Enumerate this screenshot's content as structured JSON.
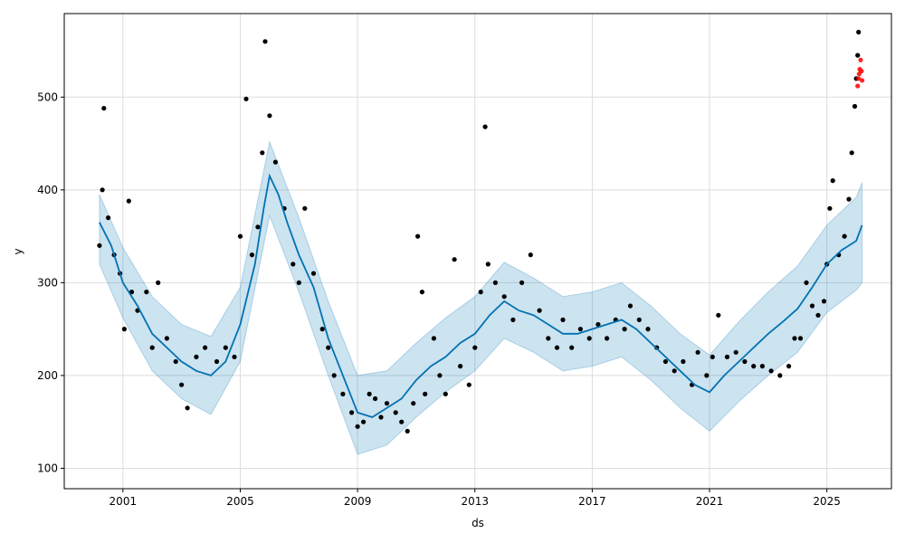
{
  "chart_data": {
    "type": "scatter",
    "xlabel": "ds",
    "ylabel": "y",
    "xlim": [
      1999.0,
      2027.2
    ],
    "ylim": [
      78,
      590
    ],
    "grid": true,
    "legend": "none",
    "x_ticks": [
      2001,
      2005,
      2009,
      2013,
      2017,
      2021,
      2025
    ],
    "x_tick_labels": [
      "2001",
      "2005",
      "2009",
      "2013",
      "2017",
      "2021",
      "2025"
    ],
    "y_ticks": [
      100,
      200,
      300,
      400,
      500
    ],
    "y_tick_labels": [
      "100",
      "200",
      "300",
      "400",
      "500"
    ],
    "colors": {
      "observed": "#000000",
      "forecast_line": "#0072b2",
      "uncertainty_band": "#0072b2",
      "highlight": "#ff0000",
      "grid": "#dddddd"
    },
    "series": [
      {
        "role": "observed",
        "points": [
          [
            2000.2,
            340
          ],
          [
            2000.3,
            400
          ],
          [
            2000.35,
            488
          ],
          [
            2000.5,
            370
          ],
          [
            2000.7,
            330
          ],
          [
            2000.9,
            310
          ],
          [
            2001.05,
            250
          ],
          [
            2001.2,
            388
          ],
          [
            2001.3,
            290
          ],
          [
            2001.5,
            270
          ],
          [
            2001.8,
            290
          ],
          [
            2002.0,
            230
          ],
          [
            2002.2,
            300
          ],
          [
            2002.5,
            240
          ],
          [
            2002.8,
            215
          ],
          [
            2003.0,
            190
          ],
          [
            2003.2,
            165
          ],
          [
            2003.5,
            220
          ],
          [
            2003.8,
            230
          ],
          [
            2004.2,
            215
          ],
          [
            2004.5,
            230
          ],
          [
            2004.8,
            220
          ],
          [
            2005.0,
            350
          ],
          [
            2005.2,
            498
          ],
          [
            2005.4,
            330
          ],
          [
            2005.6,
            360
          ],
          [
            2005.75,
            440
          ],
          [
            2005.85,
            560
          ],
          [
            2006.0,
            480
          ],
          [
            2006.2,
            430
          ],
          [
            2006.5,
            380
          ],
          [
            2006.8,
            320
          ],
          [
            2007.0,
            300
          ],
          [
            2007.2,
            380
          ],
          [
            2007.5,
            310
          ],
          [
            2007.8,
            250
          ],
          [
            2008.0,
            230
          ],
          [
            2008.2,
            200
          ],
          [
            2008.5,
            180
          ],
          [
            2008.8,
            160
          ],
          [
            2009.0,
            145
          ],
          [
            2009.2,
            150
          ],
          [
            2009.4,
            180
          ],
          [
            2009.6,
            175
          ],
          [
            2009.8,
            155
          ],
          [
            2010.0,
            170
          ],
          [
            2010.3,
            160
          ],
          [
            2010.5,
            150
          ],
          [
            2010.7,
            140
          ],
          [
            2010.9,
            170
          ],
          [
            2011.05,
            350
          ],
          [
            2011.2,
            290
          ],
          [
            2011.3,
            180
          ],
          [
            2011.6,
            240
          ],
          [
            2011.8,
            200
          ],
          [
            2012.0,
            180
          ],
          [
            2012.3,
            325
          ],
          [
            2012.5,
            210
          ],
          [
            2012.8,
            190
          ],
          [
            2013.0,
            230
          ],
          [
            2013.2,
            290
          ],
          [
            2013.35,
            468
          ],
          [
            2013.45,
            320
          ],
          [
            2013.7,
            300
          ],
          [
            2014.0,
            285
          ],
          [
            2014.3,
            260
          ],
          [
            2014.6,
            300
          ],
          [
            2014.9,
            330
          ],
          [
            2015.2,
            270
          ],
          [
            2015.5,
            240
          ],
          [
            2015.8,
            230
          ],
          [
            2016.0,
            260
          ],
          [
            2016.3,
            230
          ],
          [
            2016.6,
            250
          ],
          [
            2016.9,
            240
          ],
          [
            2017.2,
            255
          ],
          [
            2017.5,
            240
          ],
          [
            2017.8,
            260
          ],
          [
            2018.1,
            250
          ],
          [
            2018.3,
            275
          ],
          [
            2018.6,
            260
          ],
          [
            2018.9,
            250
          ],
          [
            2019.2,
            230
          ],
          [
            2019.5,
            215
          ],
          [
            2019.8,
            205
          ],
          [
            2020.1,
            215
          ],
          [
            2020.4,
            190
          ],
          [
            2020.6,
            225
          ],
          [
            2020.9,
            200
          ],
          [
            2021.1,
            220
          ],
          [
            2021.3,
            265
          ],
          [
            2021.6,
            220
          ],
          [
            2021.9,
            225
          ],
          [
            2022.2,
            215
          ],
          [
            2022.5,
            210
          ],
          [
            2022.8,
            210
          ],
          [
            2023.1,
            205
          ],
          [
            2023.4,
            200
          ],
          [
            2023.7,
            210
          ],
          [
            2023.9,
            240
          ],
          [
            2024.1,
            240
          ],
          [
            2024.3,
            300
          ],
          [
            2024.5,
            275
          ],
          [
            2024.7,
            265
          ],
          [
            2024.9,
            280
          ],
          [
            2025.0,
            320
          ],
          [
            2025.1,
            380
          ],
          [
            2025.2,
            410
          ],
          [
            2025.4,
            330
          ],
          [
            2025.6,
            350
          ],
          [
            2025.75,
            390
          ],
          [
            2025.85,
            440
          ],
          [
            2025.95,
            490
          ],
          [
            2026.0,
            520
          ],
          [
            2026.05,
            545
          ],
          [
            2026.08,
            570
          ]
        ]
      },
      {
        "role": "highlight",
        "points": [
          [
            2026.05,
            512
          ],
          [
            2026.08,
            520
          ],
          [
            2026.1,
            525
          ],
          [
            2026.12,
            530
          ],
          [
            2026.15,
            540
          ],
          [
            2026.18,
            528
          ],
          [
            2026.2,
            518
          ]
        ]
      },
      {
        "role": "trend",
        "points": [
          [
            2000.2,
            365
          ],
          [
            2000.6,
            340
          ],
          [
            2001.0,
            300
          ],
          [
            2001.5,
            275
          ],
          [
            2002.0,
            245
          ],
          [
            2002.5,
            230
          ],
          [
            2003.0,
            215
          ],
          [
            2003.5,
            205
          ],
          [
            2004.0,
            200
          ],
          [
            2004.5,
            215
          ],
          [
            2005.0,
            255
          ],
          [
            2005.5,
            320
          ],
          [
            2005.8,
            380
          ],
          [
            2006.0,
            415
          ],
          [
            2006.3,
            395
          ],
          [
            2006.6,
            365
          ],
          [
            2007.0,
            330
          ],
          [
            2007.5,
            295
          ],
          [
            2008.0,
            240
          ],
          [
            2008.5,
            200
          ],
          [
            2009.0,
            160
          ],
          [
            2009.5,
            155
          ],
          [
            2010.0,
            165
          ],
          [
            2010.5,
            175
          ],
          [
            2011.0,
            195
          ],
          [
            2011.5,
            210
          ],
          [
            2012.0,
            220
          ],
          [
            2012.5,
            235
          ],
          [
            2013.0,
            245
          ],
          [
            2013.5,
            265
          ],
          [
            2014.0,
            280
          ],
          [
            2014.5,
            270
          ],
          [
            2015.0,
            265
          ],
          [
            2015.5,
            255
          ],
          [
            2016.0,
            245
          ],
          [
            2016.5,
            245
          ],
          [
            2017.0,
            250
          ],
          [
            2017.5,
            255
          ],
          [
            2018.0,
            260
          ],
          [
            2018.5,
            250
          ],
          [
            2019.0,
            235
          ],
          [
            2019.5,
            220
          ],
          [
            2020.0,
            205
          ],
          [
            2020.5,
            190
          ],
          [
            2021.0,
            182
          ],
          [
            2021.5,
            200
          ],
          [
            2022.0,
            215
          ],
          [
            2022.5,
            230
          ],
          [
            2023.0,
            245
          ],
          [
            2023.5,
            258
          ],
          [
            2024.0,
            272
          ],
          [
            2024.5,
            295
          ],
          [
            2025.0,
            320
          ],
          [
            2025.5,
            335
          ],
          [
            2026.0,
            345
          ],
          [
            2026.2,
            362
          ]
        ]
      },
      {
        "role": "uncertainty_band",
        "points": [
          [
            2000.2,
            320,
            395
          ],
          [
            2001.0,
            262,
            338
          ],
          [
            2002.0,
            205,
            285
          ],
          [
            2003.0,
            175,
            255
          ],
          [
            2004.0,
            158,
            242
          ],
          [
            2005.0,
            215,
            295
          ],
          [
            2006.0,
            372,
            452
          ],
          [
            2007.0,
            290,
            370
          ],
          [
            2008.0,
            200,
            280
          ],
          [
            2009.0,
            115,
            200
          ],
          [
            2010.0,
            125,
            205
          ],
          [
            2011.0,
            155,
            235
          ],
          [
            2012.0,
            182,
            262
          ],
          [
            2013.0,
            205,
            285
          ],
          [
            2014.0,
            240,
            322
          ],
          [
            2015.0,
            225,
            305
          ],
          [
            2016.0,
            205,
            285
          ],
          [
            2017.0,
            210,
            290
          ],
          [
            2018.0,
            220,
            300
          ],
          [
            2019.0,
            195,
            275
          ],
          [
            2020.0,
            165,
            245
          ],
          [
            2021.0,
            140,
            222
          ],
          [
            2022.0,
            172,
            258
          ],
          [
            2023.0,
            200,
            290
          ],
          [
            2024.0,
            225,
            318
          ],
          [
            2025.0,
            268,
            362
          ],
          [
            2026.0,
            292,
            392
          ],
          [
            2026.2,
            300,
            408
          ]
        ]
      }
    ]
  }
}
